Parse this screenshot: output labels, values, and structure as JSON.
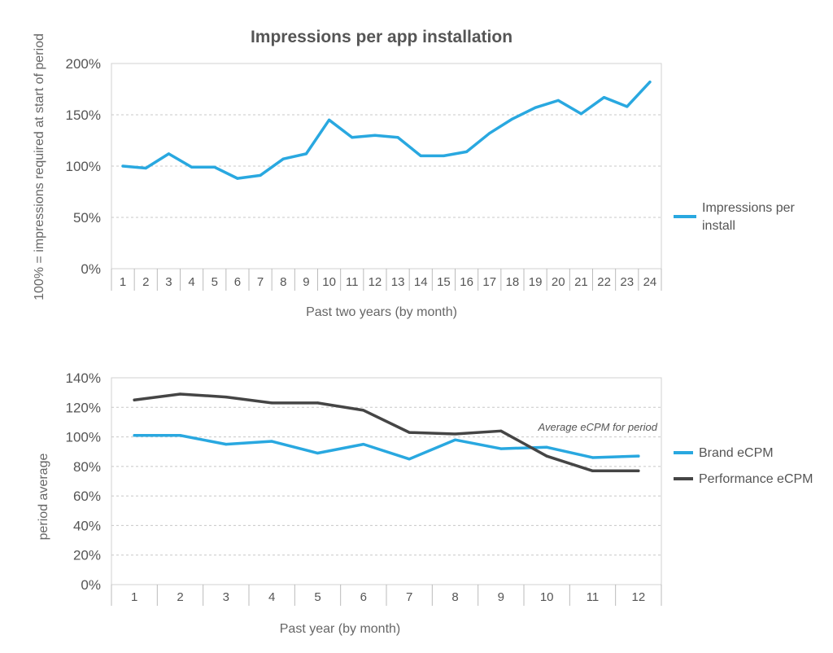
{
  "colors": {
    "brand": "#29A8E0",
    "performance": "#454545"
  },
  "chart_data": [
    {
      "type": "line",
      "title": "Impressions per app installation",
      "xlabel": "Past two years (by month)",
      "ylabel": "100% = impressions required at start of period",
      "categories": [
        "1",
        "2",
        "3",
        "4",
        "5",
        "6",
        "7",
        "8",
        "9",
        "10",
        "11",
        "12",
        "13",
        "14",
        "15",
        "16",
        "17",
        "18",
        "19",
        "20",
        "21",
        "22",
        "23",
        "24"
      ],
      "ylim": [
        0,
        200
      ],
      "yticks": [
        "0%",
        "50%",
        "100%",
        "150%",
        "200%"
      ],
      "ytick_values": [
        0,
        50,
        100,
        150,
        200
      ],
      "grid": true,
      "legend_position": "right",
      "series": [
        {
          "name": "Impressions per install",
          "values": [
            100,
            98,
            112,
            99,
            99,
            88,
            91,
            107,
            112,
            145,
            128,
            130,
            128,
            110,
            110,
            114,
            132,
            146,
            157,
            164,
            151,
            167,
            158,
            182
          ]
        }
      ]
    },
    {
      "type": "line",
      "title": "",
      "xlabel": "Past year (by month)",
      "ylabel": "period average",
      "categories": [
        "1",
        "2",
        "3",
        "4",
        "5",
        "6",
        "7",
        "8",
        "9",
        "10",
        "11",
        "12"
      ],
      "ylim": [
        0,
        140
      ],
      "yticks": [
        "0%",
        "20%",
        "40%",
        "60%",
        "80%",
        "100%",
        "120%",
        "140%"
      ],
      "ytick_values": [
        0,
        20,
        40,
        60,
        80,
        100,
        120,
        140
      ],
      "grid": true,
      "legend_position": "right",
      "annotation": "Average eCPM for period",
      "series": [
        {
          "name": "Brand eCPM",
          "values": [
            101,
            101,
            95,
            97,
            89,
            95,
            85,
            98,
            92,
            93,
            86,
            87
          ]
        },
        {
          "name": "Performance eCPM",
          "values": [
            125,
            129,
            127,
            123,
            123,
            118,
            103,
            102,
            104,
            87,
            77,
            77
          ]
        }
      ]
    }
  ]
}
